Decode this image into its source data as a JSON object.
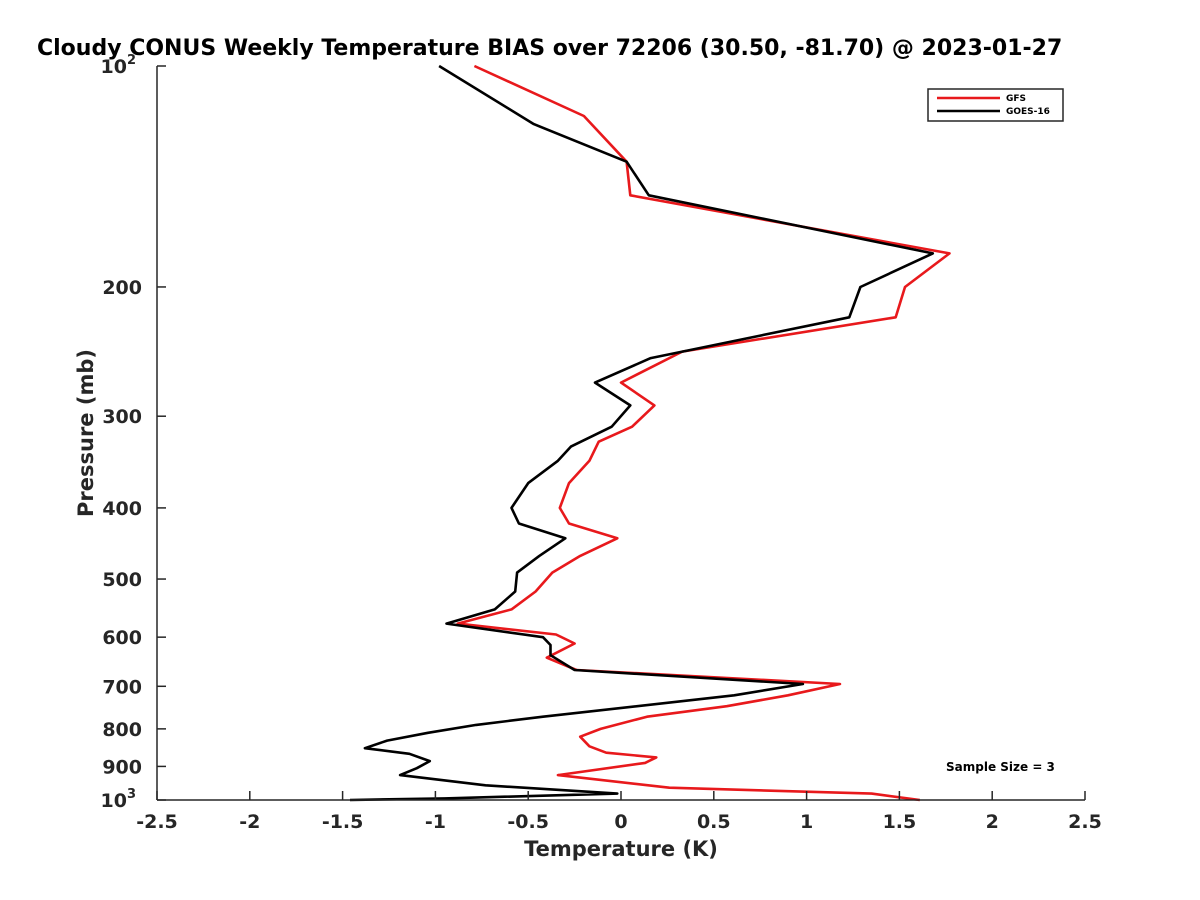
{
  "chart_data": {
    "type": "line",
    "title": "Cloudy CONUS Weekly Temperature BIAS over 72206 (30.50, -81.70) @ 2023-01-27",
    "xlabel": "Temperature (K)",
    "ylabel": "Pressure (mb)",
    "xlim": [
      -2.5,
      2.5
    ],
    "ylim": [
      100,
      1000
    ],
    "yscale": "log",
    "y_reversed": true,
    "x_ticks": [
      "-2.5",
      "-2",
      "-1.5",
      "-1",
      "-0.5",
      "0",
      "0.5",
      "1",
      "1.5",
      "2",
      "2.5"
    ],
    "x_tick_values": [
      -2.5,
      -2,
      -1.5,
      -1,
      -0.5,
      0,
      0.5,
      1,
      1.5,
      2,
      2.5
    ],
    "y_ticks": [
      {
        "value": 100,
        "label": "10",
        "sup": "2"
      },
      {
        "value": 200,
        "label": "200",
        "sup": ""
      },
      {
        "value": 300,
        "label": "300",
        "sup": ""
      },
      {
        "value": 400,
        "label": "400",
        "sup": ""
      },
      {
        "value": 500,
        "label": "500",
        "sup": ""
      },
      {
        "value": 600,
        "label": "600",
        "sup": ""
      },
      {
        "value": 700,
        "label": "700",
        "sup": ""
      },
      {
        "value": 800,
        "label": "800",
        "sup": ""
      },
      {
        "value": 900,
        "label": "900",
        "sup": ""
      },
      {
        "value": 1000,
        "label": "10",
        "sup": "3"
      }
    ],
    "legend_position": "top-right",
    "annotation": "Sample Size = 3",
    "series": [
      {
        "name": "GFS",
        "color": "#e8191c",
        "points": [
          [
            -0.79,
            100
          ],
          [
            -0.2,
            117
          ],
          [
            0.03,
            135
          ],
          [
            0.05,
            150
          ],
          [
            1.77,
            180
          ],
          [
            1.53,
            200
          ],
          [
            1.48,
            220
          ],
          [
            0.33,
            245
          ],
          [
            0.0,
            270
          ],
          [
            0.18,
            290
          ],
          [
            0.06,
            310
          ],
          [
            -0.12,
            325
          ],
          [
            -0.17,
            345
          ],
          [
            -0.28,
            370
          ],
          [
            -0.33,
            400
          ],
          [
            -0.28,
            420
          ],
          [
            -0.02,
            440
          ],
          [
            -0.22,
            465
          ],
          [
            -0.37,
            490
          ],
          [
            -0.46,
            520
          ],
          [
            -0.59,
            550
          ],
          [
            -0.88,
            575
          ],
          [
            -0.35,
            595
          ],
          [
            -0.25,
            612
          ],
          [
            -0.4,
            640
          ],
          [
            -0.24,
            665
          ],
          [
            1.18,
            695
          ],
          [
            0.9,
            720
          ],
          [
            0.57,
            745
          ],
          [
            0.14,
            770
          ],
          [
            -0.11,
            800
          ],
          [
            -0.22,
            820
          ],
          [
            -0.17,
            845
          ],
          [
            -0.08,
            862
          ],
          [
            0.19,
            875
          ],
          [
            0.13,
            890
          ],
          [
            -0.34,
            925
          ],
          [
            0.26,
            962
          ],
          [
            1.35,
            980
          ],
          [
            1.61,
            1000
          ]
        ]
      },
      {
        "name": "GOES-16",
        "color": "#000000",
        "points": [
          [
            -0.98,
            100
          ],
          [
            -0.47,
            120
          ],
          [
            0.03,
            135
          ],
          [
            0.15,
            150
          ],
          [
            1.68,
            180
          ],
          [
            1.29,
            200
          ],
          [
            1.23,
            220
          ],
          [
            0.16,
            250
          ],
          [
            -0.14,
            270
          ],
          [
            0.05,
            290
          ],
          [
            -0.05,
            310
          ],
          [
            -0.27,
            330
          ],
          [
            -0.34,
            345
          ],
          [
            -0.5,
            370
          ],
          [
            -0.59,
            400
          ],
          [
            -0.55,
            420
          ],
          [
            -0.3,
            440
          ],
          [
            -0.44,
            465
          ],
          [
            -0.56,
            490
          ],
          [
            -0.57,
            520
          ],
          [
            -0.68,
            550
          ],
          [
            -0.94,
            575
          ],
          [
            -0.42,
            600
          ],
          [
            -0.38,
            615
          ],
          [
            -0.38,
            635
          ],
          [
            -0.25,
            665
          ],
          [
            0.98,
            695
          ],
          [
            0.61,
            720
          ],
          [
            -0.42,
            770
          ],
          [
            -0.78,
            790
          ],
          [
            -1.04,
            810
          ],
          [
            -1.26,
            830
          ],
          [
            -1.38,
            850
          ],
          [
            -1.14,
            865
          ],
          [
            -1.03,
            885
          ],
          [
            -1.1,
            905
          ],
          [
            -1.19,
            925
          ],
          [
            -0.73,
            955
          ],
          [
            -0.02,
            980
          ],
          [
            -0.95,
            995
          ],
          [
            -1.46,
            1000
          ]
        ]
      }
    ]
  }
}
